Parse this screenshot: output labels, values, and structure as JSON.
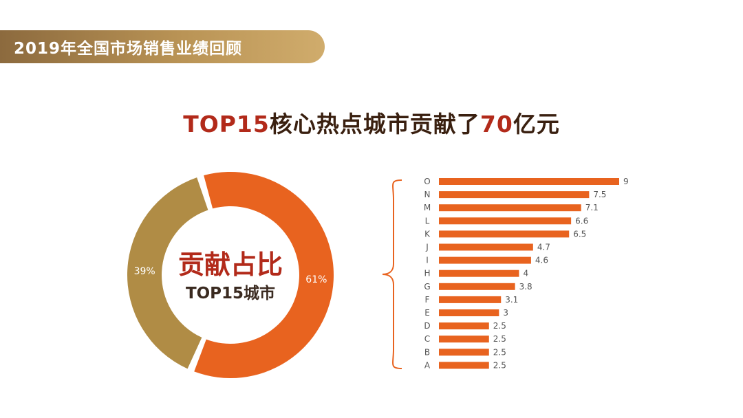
{
  "header": {
    "title": "2019年全国市场销售业绩回顾"
  },
  "headline": {
    "part1": "TOP15",
    "part2": "核心热点城市贡献了",
    "part3": "70",
    "part4": "亿元"
  },
  "colors": {
    "orange": "#e8631f",
    "gold": "#b08c45",
    "title_red": "#b22a1a",
    "dark_brown": "#3a2010",
    "header_gold": "#b99355"
  },
  "chart_data": [
    {
      "type": "pie",
      "style": "donut",
      "center_label": {
        "line1": "贡献占比",
        "line2": "TOP15城市"
      },
      "slices": [
        {
          "label": "61%",
          "value": 61,
          "color": "#e8631f"
        },
        {
          "label": "39%",
          "value": 39,
          "color": "#b08c45"
        }
      ]
    },
    {
      "type": "bar",
      "orientation": "horizontal",
      "categories": [
        "O",
        "N",
        "M",
        "L",
        "K",
        "J",
        "I",
        "H",
        "G",
        "F",
        "E",
        "D",
        "C",
        "B",
        "A"
      ],
      "values": [
        9,
        7.5,
        7.1,
        6.6,
        6.5,
        4.7,
        4.6,
        4,
        3.8,
        3.1,
        3,
        2.5,
        2.5,
        2.5,
        2.5
      ],
      "value_labels": [
        "9",
        "7.5",
        "7.1",
        "6.6",
        "6.5",
        "4.7",
        "4.6",
        "4",
        "3.8",
        "3.1",
        "3",
        "2.5",
        "2.5",
        "2.5",
        "2.5"
      ],
      "xlim": [
        0,
        9
      ],
      "color": "#e8631f",
      "data_labels": true,
      "bracket": true
    }
  ]
}
